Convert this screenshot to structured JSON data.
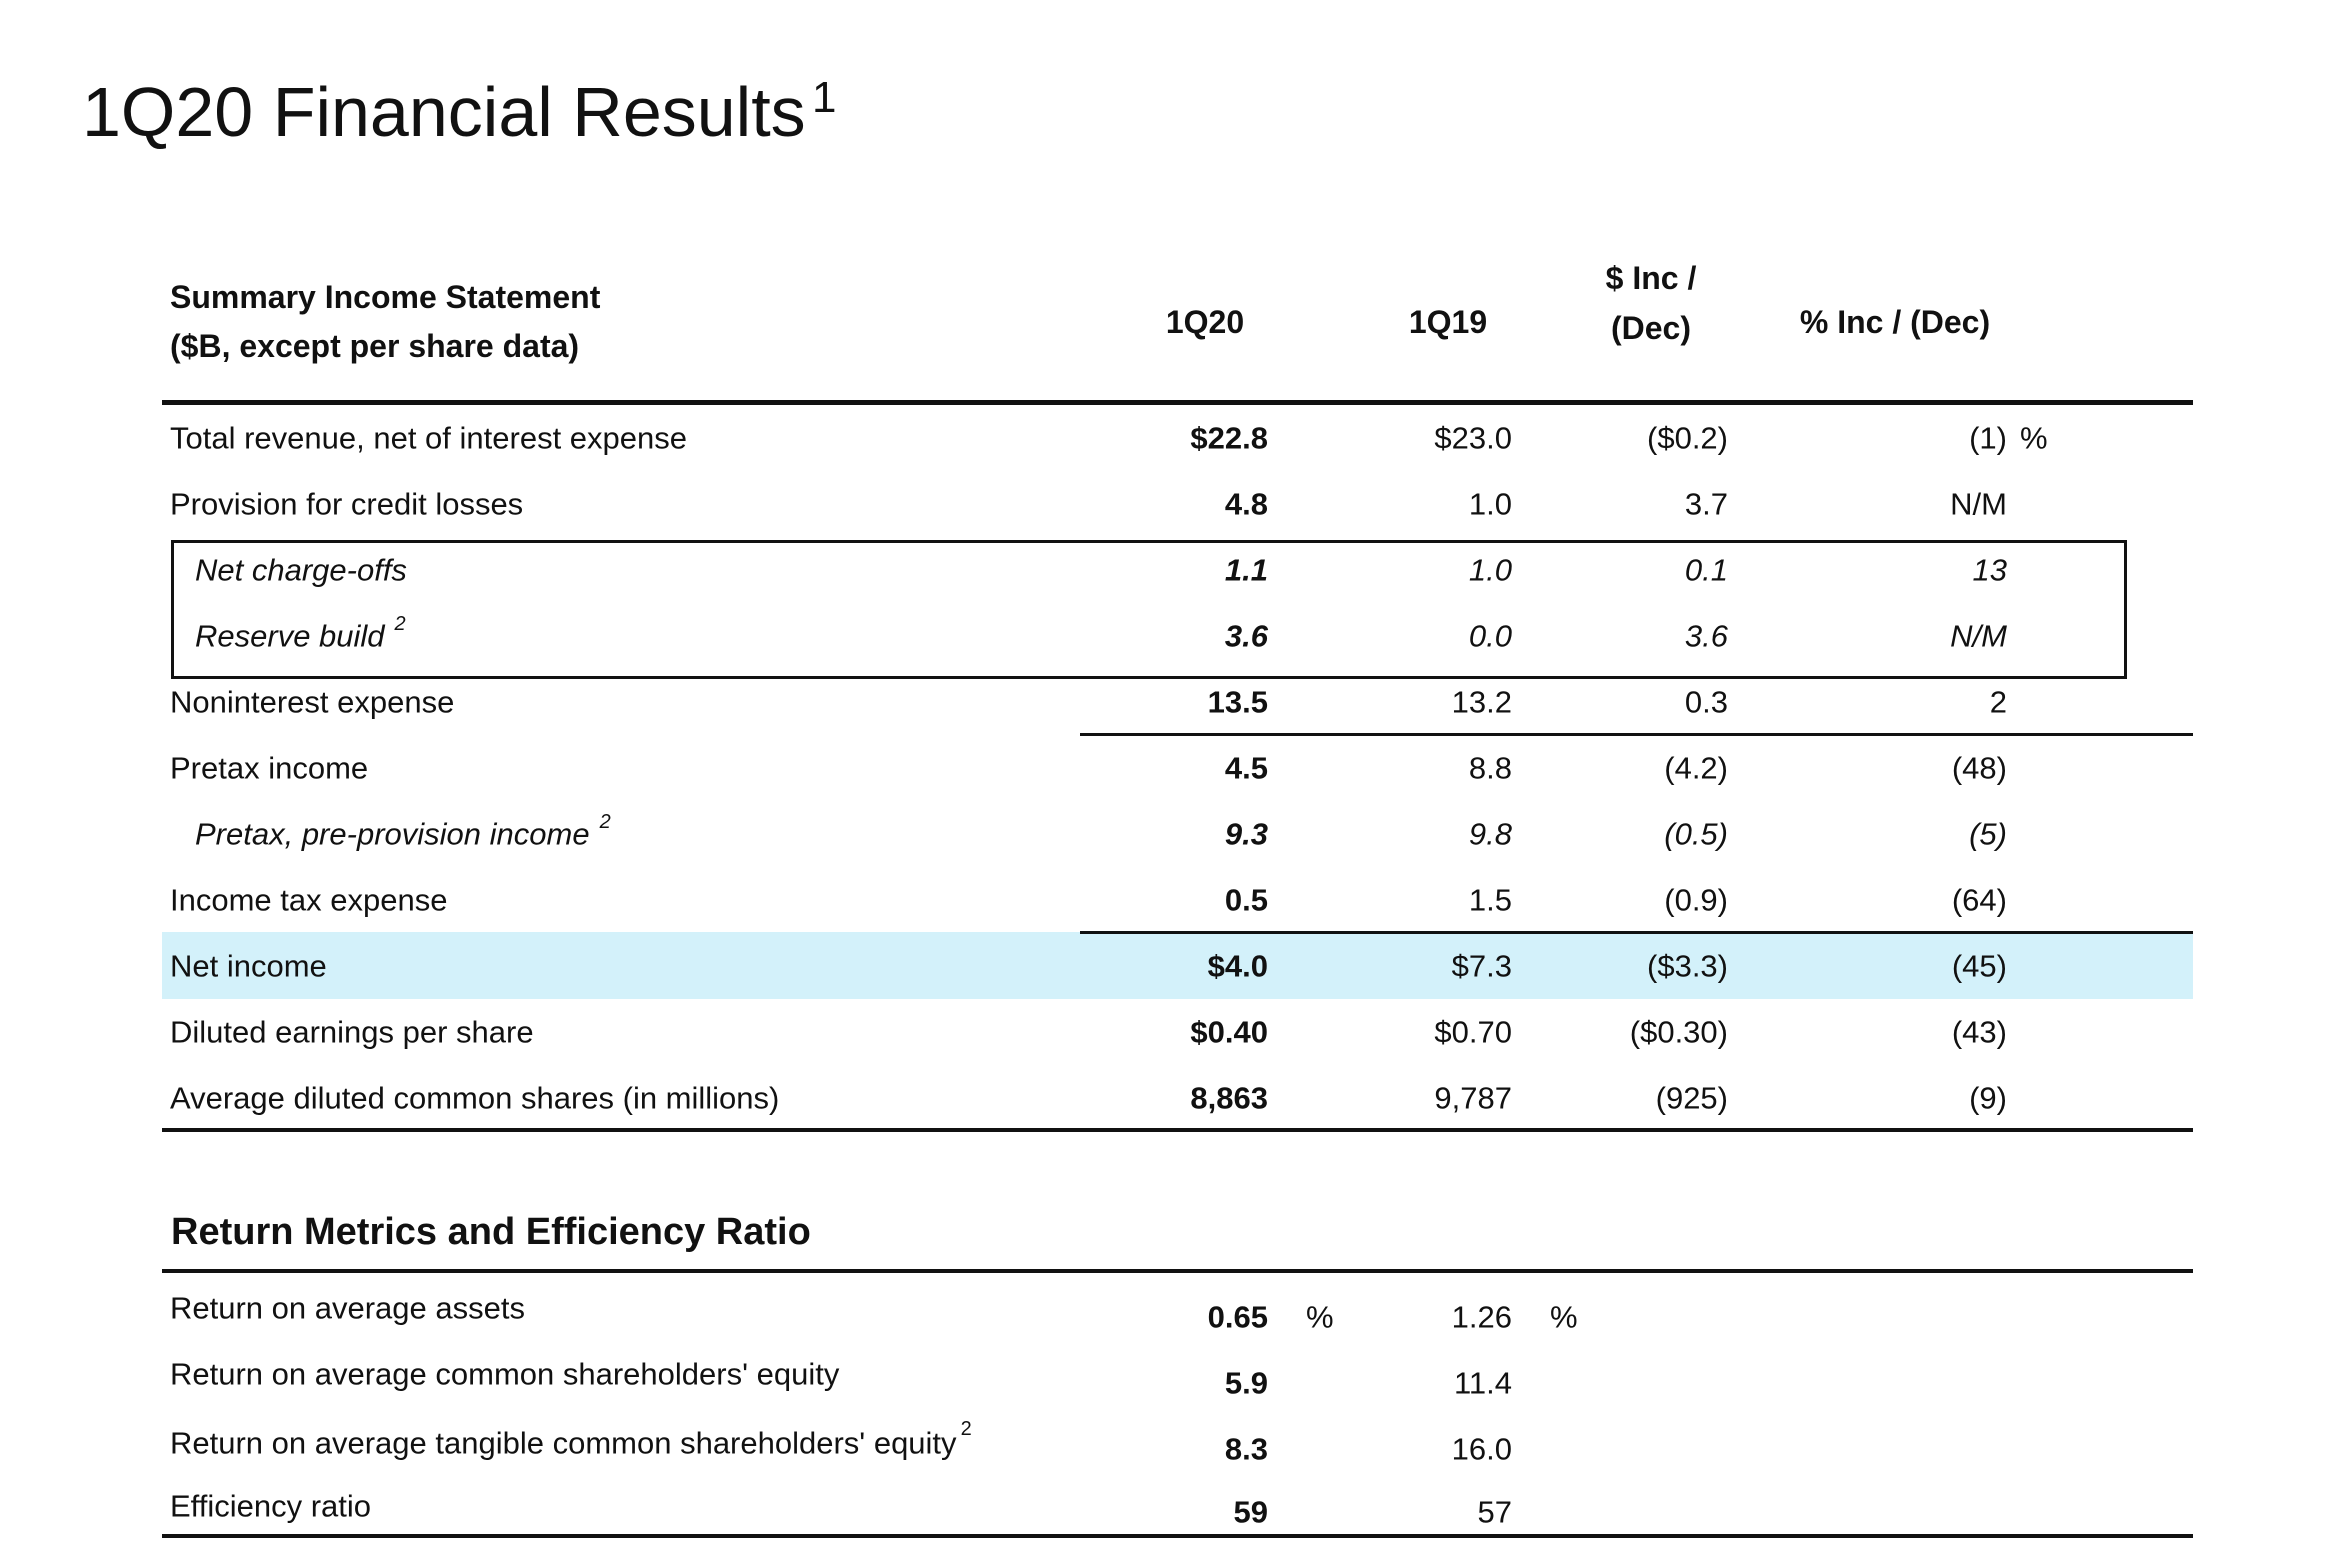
{
  "header": {
    "title": "1Q20 Financial Results",
    "footnote": "1"
  },
  "income_statement": {
    "heading": [
      "Summary Income Statement",
      "($B, except per share data)"
    ],
    "columns": [
      [
        "1Q20"
      ],
      [
        "1Q19"
      ],
      [
        "$ Inc /",
        "(Dec)"
      ],
      [
        "% Inc / (Dec)"
      ]
    ],
    "rows": [
      {
        "label": "Total revenue, net of interest expense",
        "values": [
          "$22.8",
          "$23.0",
          "($0.2)",
          "(1)"
        ],
        "unit": "%"
      },
      {
        "label": "Provision for credit losses",
        "values": [
          "4.8",
          "1.0",
          "3.7",
          "N/M"
        ]
      },
      {
        "label": "Net charge-offs",
        "values": [
          "1.1",
          "1.0",
          "0.1",
          "13"
        ]
      },
      {
        "label": "Reserve build",
        "footnote": "2",
        "values": [
          "3.6",
          "0.0",
          "3.6",
          "N/M"
        ]
      },
      {
        "label": "Noninterest expense",
        "values": [
          "13.5",
          "13.2",
          "0.3",
          "2"
        ]
      },
      {
        "label": "Pretax income",
        "values": [
          "4.5",
          "8.8",
          "(4.2)",
          "(48)"
        ]
      },
      {
        "label": "Pretax, pre-provision income",
        "footnote": "2",
        "values": [
          "9.3",
          "9.8",
          "(0.5)",
          "(5)"
        ]
      },
      {
        "label": "Income tax expense",
        "values": [
          "0.5",
          "1.5",
          "(0.9)",
          "(64)"
        ]
      },
      {
        "label": "Net income",
        "values": [
          "$4.0",
          "$7.3",
          "($3.3)",
          "(45)"
        ]
      },
      {
        "label": "Diluted earnings per share",
        "values": [
          "$0.40",
          "$0.70",
          "($0.30)",
          "(43)"
        ]
      },
      {
        "label": "Average diluted common shares (in millions)",
        "values": [
          "8,863",
          "9,787",
          "(925)",
          "(9)"
        ]
      }
    ]
  },
  "return_metrics": {
    "heading": "Return Metrics and Efficiency Ratio",
    "rows": [
      {
        "label": "Return on average assets",
        "values": [
          "0.65",
          "1.26"
        ],
        "unit": "%"
      },
      {
        "label": "Return on average common shareholders' equity",
        "values": [
          "5.9",
          "11.4"
        ]
      },
      {
        "label": "Return on average tangible common shareholders' equity",
        "footnote": "2",
        "values": [
          "8.3",
          "16.0"
        ]
      },
      {
        "label": "Efficiency ratio",
        "values": [
          "59",
          "57"
        ]
      }
    ]
  }
}
